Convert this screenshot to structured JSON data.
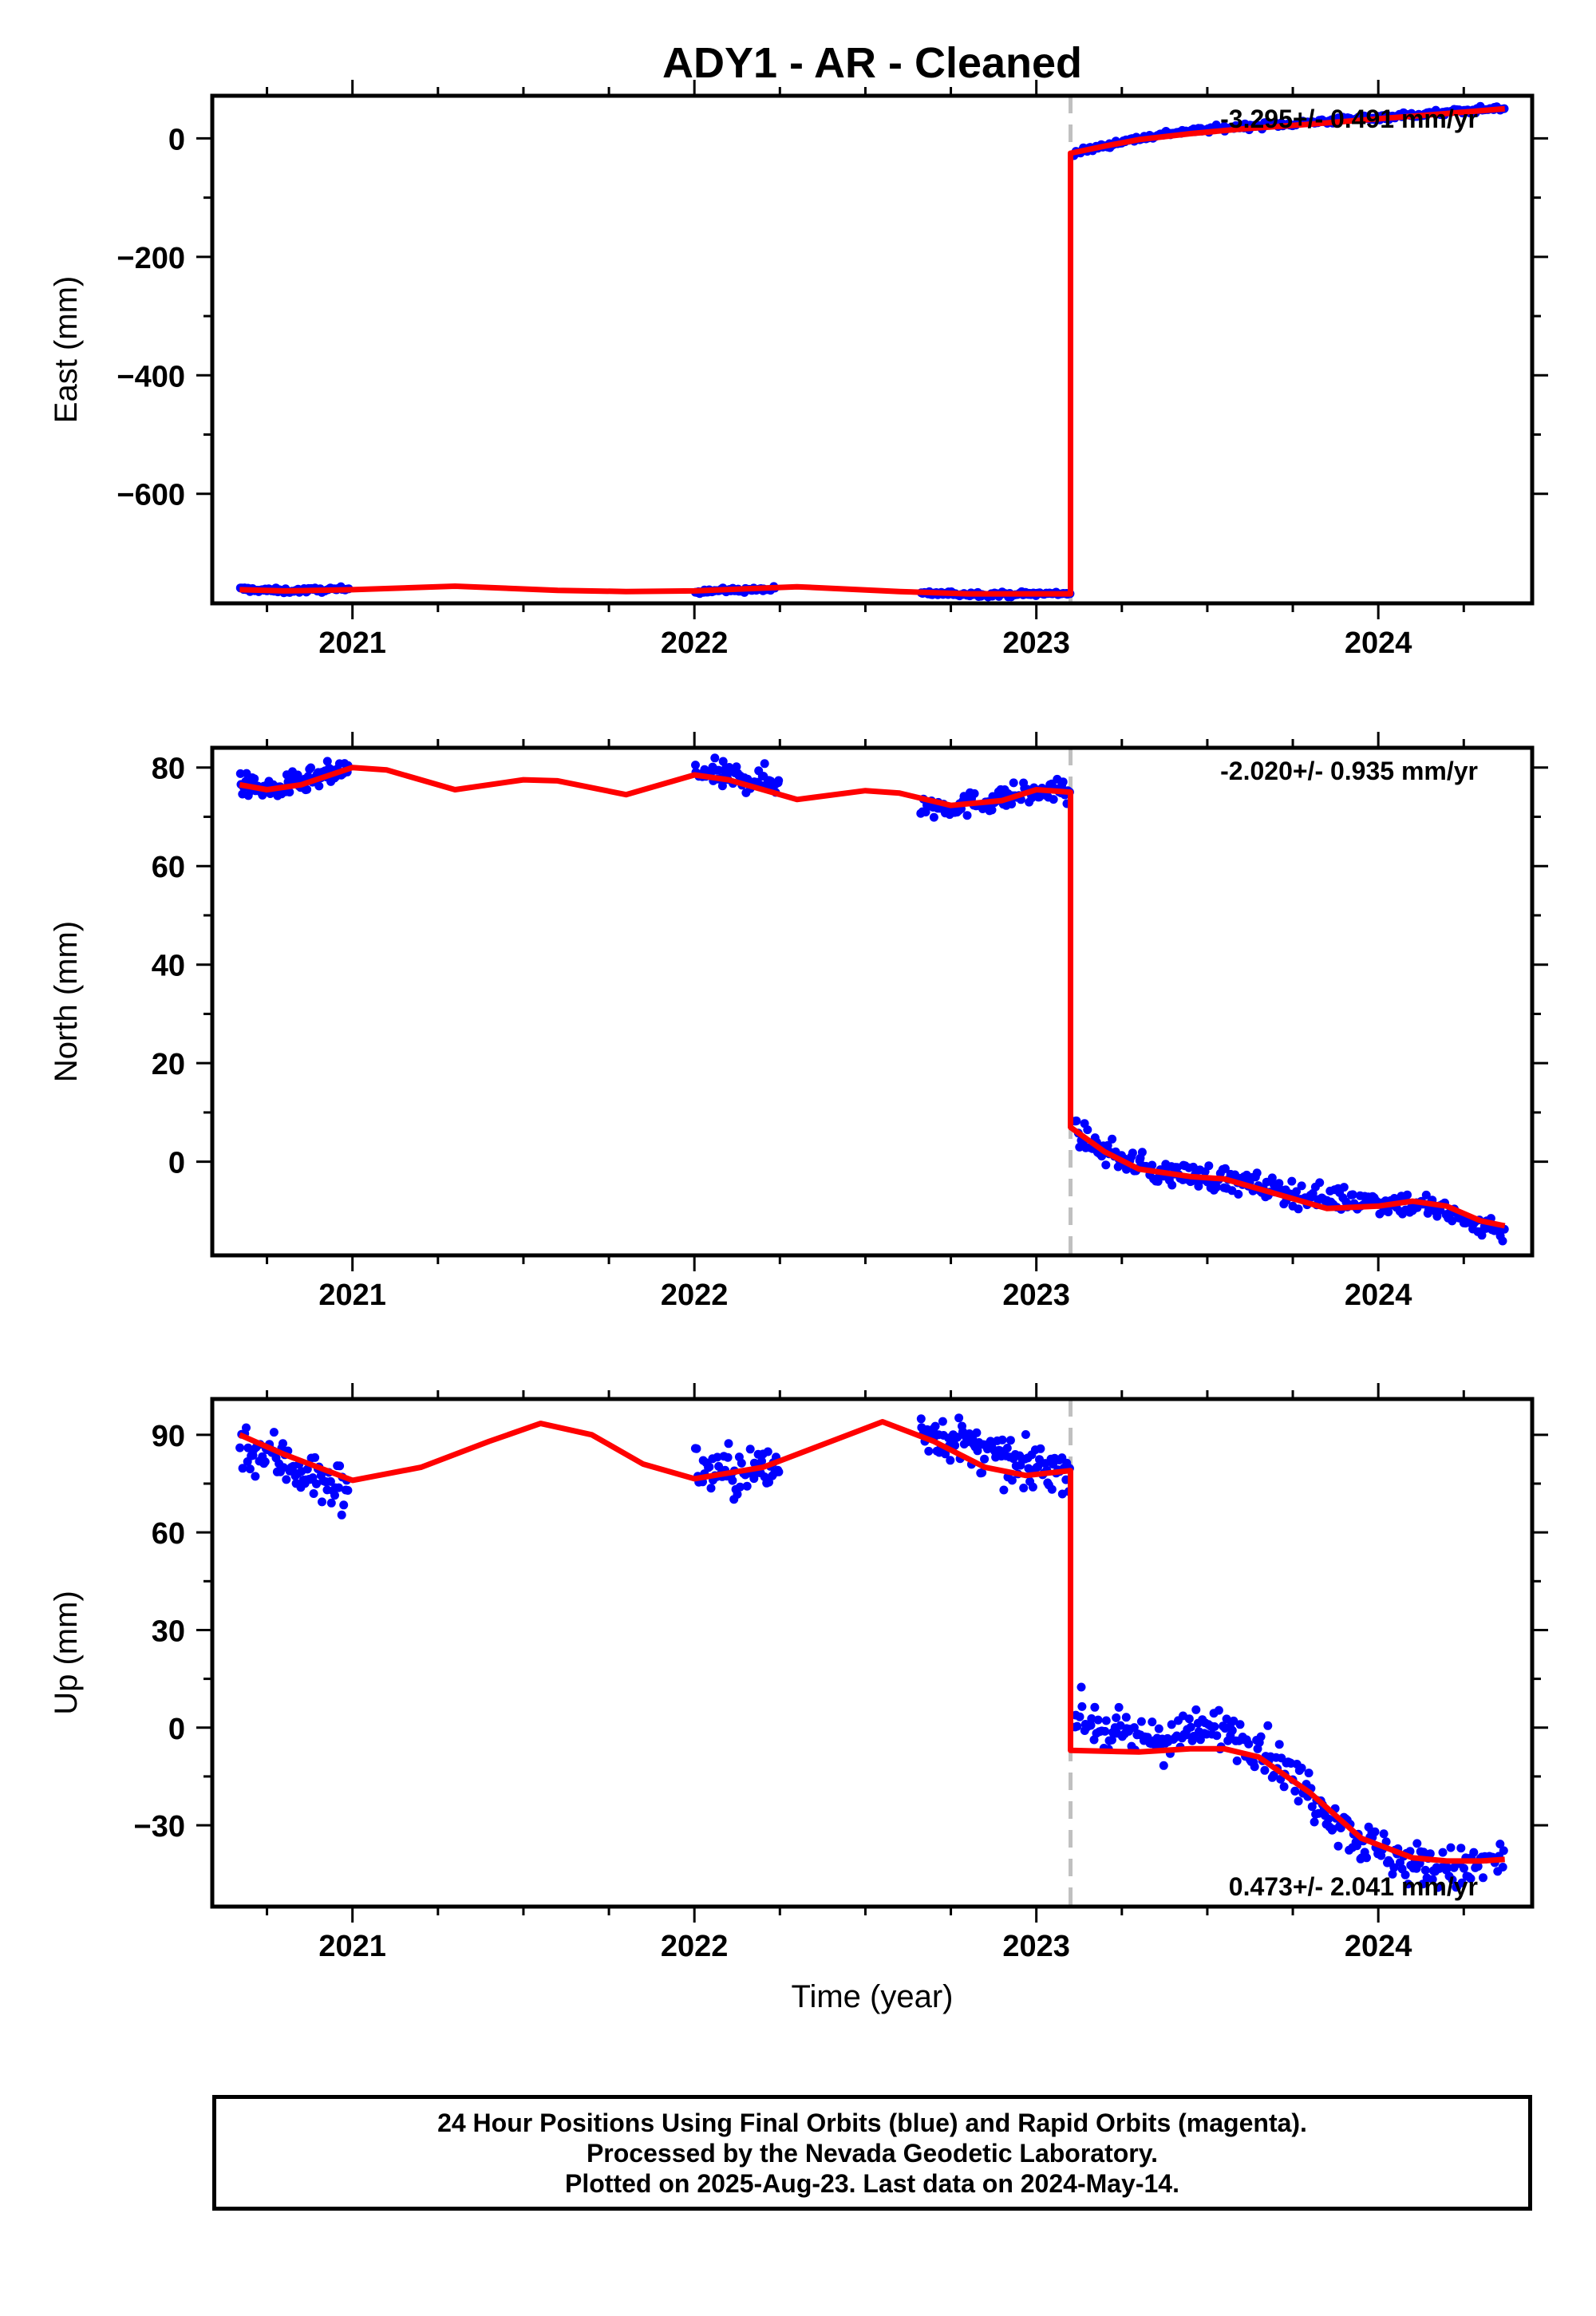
{
  "title": "ADY1  - AR - Cleaned",
  "colors": {
    "data_points": "#0000ff",
    "model_line": "#ff0000",
    "break_line": "#c0c0c0",
    "frame": "#000000"
  },
  "footer": {
    "lines": [
      "24 Hour Positions Using Final Orbits (blue) and Rapid Orbits (magenta).",
      "Processed by the Nevada Geodetic Laboratory.",
      "Plotted on 2025-Aug-23. Last data on 2024-May-14."
    ]
  },
  "chart_data": [
    {
      "type": "scatter",
      "component": "east",
      "ylabel": "East (mm)",
      "xlabel": "",
      "xlim": [
        2020.59,
        2024.45
      ],
      "ylim": [
        -785,
        72
      ],
      "xticks": [
        2021,
        2022,
        2023,
        2024
      ],
      "xtick_labels": [
        "2021",
        "2022",
        "2023",
        "2024"
      ],
      "yticks": [
        0,
        -200,
        -400,
        -600
      ],
      "ytick_labels": [
        "0",
        "−200",
        "−400",
        "−600"
      ],
      "rate_label": "-3.295+/- 0.491 mm/yr",
      "rate_position": "top-right",
      "break_epoch": 2023.1,
      "series": [
        {
          "role": "observations",
          "segments": [
            {
              "x_range": [
                2020.67,
                2020.99
              ],
              "anchors": [
                [
                  2020.67,
                  -761
                ],
                [
                  2020.8,
                  -764
                ],
                [
                  2020.99,
                  -761
                ]
              ],
              "noise": 2,
              "count": 70
            },
            {
              "x_range": [
                2022.0,
                2022.24
              ],
              "anchors": [
                [
                  2022.0,
                  -764
                ],
                [
                  2022.12,
                  -763
                ],
                [
                  2022.24,
                  -761
                ]
              ],
              "noise": 2,
              "count": 50
            },
            {
              "x_range": [
                2022.66,
                2023.1
              ],
              "anchors": [
                [
                  2022.66,
                  -768
                ],
                [
                  2022.9,
                  -770
                ],
                [
                  2023.1,
                  -768
                ]
              ],
              "noise": 2,
              "count": 90
            },
            {
              "x_range": [
                2023.11,
                2024.37
              ],
              "anchors": [
                [
                  2023.11,
                  -25
                ],
                [
                  2023.25,
                  -5
                ],
                [
                  2023.4,
                  10
                ],
                [
                  2023.6,
                  20
                ],
                [
                  2023.8,
                  27
                ],
                [
                  2024.0,
                  36
                ],
                [
                  2024.2,
                  44
                ],
                [
                  2024.37,
                  52
                ]
              ],
              "noise": 2.5,
              "count": 240
            }
          ]
        },
        {
          "role": "model",
          "points": [
            [
              2020.67,
              -762
            ],
            [
              2020.8,
              -764
            ],
            [
              2021.0,
              -762
            ],
            [
              2021.3,
              -756
            ],
            [
              2021.6,
              -763
            ],
            [
              2021.8,
              -765
            ],
            [
              2022.0,
              -764
            ],
            [
              2022.3,
              -757
            ],
            [
              2022.6,
              -765
            ],
            [
              2022.8,
              -769
            ],
            [
              2023.1,
              -769
            ],
            [
              2023.1,
              -25
            ],
            [
              2023.2,
              -13
            ],
            [
              2023.3,
              -2
            ],
            [
              2023.45,
              8
            ],
            [
              2023.6,
              16
            ],
            [
              2023.8,
              24
            ],
            [
              2024.0,
              33
            ],
            [
              2024.2,
              42
            ],
            [
              2024.37,
              50
            ]
          ]
        }
      ]
    },
    {
      "type": "scatter",
      "component": "north",
      "ylabel": "North (mm)",
      "xlabel": "",
      "xlim": [
        2020.59,
        2024.45
      ],
      "ylim": [
        -19,
        84
      ],
      "xticks": [
        2021,
        2022,
        2023,
        2024
      ],
      "xtick_labels": [
        "2021",
        "2022",
        "2023",
        "2024"
      ],
      "yticks": [
        80,
        60,
        40,
        20,
        0
      ],
      "ytick_labels": [
        "80",
        "60",
        "40",
        "20",
        "0"
      ],
      "rate_label": "-2.020+/- 0.935 mm/yr",
      "rate_position": "top-right",
      "break_epoch": 2023.1,
      "series": [
        {
          "role": "observations",
          "segments": [
            {
              "x_range": [
                2020.67,
                2020.99
              ],
              "anchors": [
                [
                  2020.67,
                  76.5
                ],
                [
                  2020.78,
                  75.5
                ],
                [
                  2020.88,
                  77.5
                ],
                [
                  2020.99,
                  79.5
                ]
              ],
              "noise": 1.2,
              "count": 80
            },
            {
              "x_range": [
                2022.0,
                2022.25
              ],
              "anchors": [
                [
                  2022.0,
                  79
                ],
                [
                  2022.12,
                  78
                ],
                [
                  2022.25,
                  77
                ]
              ],
              "noise": 1.4,
              "count": 60
            },
            {
              "x_range": [
                2022.66,
                2023.1
              ],
              "anchors": [
                [
                  2022.66,
                  72
                ],
                [
                  2022.8,
                  72.5
                ],
                [
                  2022.95,
                  74.5
                ],
                [
                  2023.1,
                  75.5
                ]
              ],
              "noise": 1.2,
              "count": 100
            },
            {
              "x_range": [
                2023.11,
                2024.37
              ],
              "anchors": [
                [
                  2023.11,
                  6
                ],
                [
                  2023.2,
                  2
                ],
                [
                  2023.35,
                  -2
                ],
                [
                  2023.5,
                  -3
                ],
                [
                  2023.65,
                  -5
                ],
                [
                  2023.8,
                  -7
                ],
                [
                  2024.0,
                  -8
                ],
                [
                  2024.15,
                  -9
                ],
                [
                  2024.25,
                  -12
                ],
                [
                  2024.37,
                  -14
                ]
              ],
              "noise": 1.3,
              "count": 260
            }
          ]
        },
        {
          "role": "model",
          "points": [
            [
              2020.67,
              76.5
            ],
            [
              2020.75,
              75.5
            ],
            [
              2020.85,
              76.5
            ],
            [
              2021.0,
              80
            ],
            [
              2021.1,
              79.5
            ],
            [
              2021.3,
              75.5
            ],
            [
              2021.5,
              77.5
            ],
            [
              2021.6,
              77.3
            ],
            [
              2021.8,
              74.5
            ],
            [
              2022.0,
              78.5
            ],
            [
              2022.1,
              77.5
            ],
            [
              2022.3,
              73.5
            ],
            [
              2022.5,
              75.3
            ],
            [
              2022.6,
              74.8
            ],
            [
              2022.75,
              72.3
            ],
            [
              2022.9,
              73.3
            ],
            [
              2023.0,
              75.5
            ],
            [
              2023.1,
              75
            ],
            [
              2023.1,
              7
            ],
            [
              2023.2,
              2
            ],
            [
              2023.3,
              -1.5
            ],
            [
              2023.45,
              -3
            ],
            [
              2023.55,
              -3.5
            ],
            [
              2023.7,
              -6.5
            ],
            [
              2023.85,
              -9.5
            ],
            [
              2024.0,
              -9
            ],
            [
              2024.1,
              -8
            ],
            [
              2024.2,
              -9
            ],
            [
              2024.3,
              -12
            ],
            [
              2024.37,
              -13
            ]
          ]
        }
      ]
    },
    {
      "type": "scatter",
      "component": "up",
      "ylabel": "Up (mm)",
      "xlabel": "Time (year)",
      "xlim": [
        2020.59,
        2024.45
      ],
      "ylim": [
        -55,
        101
      ],
      "xticks": [
        2021,
        2022,
        2023,
        2024
      ],
      "xtick_labels": [
        "2021",
        "2022",
        "2023",
        "2024"
      ],
      "yticks": [
        90,
        60,
        30,
        0,
        -30
      ],
      "ytick_labels": [
        "90",
        "60",
        "30",
        "0",
        "−30"
      ],
      "rate_label": "0.473+/- 2.041 mm/yr",
      "rate_position": "bottom-right",
      "break_epoch": 2023.1,
      "series": [
        {
          "role": "observations",
          "segments": [
            {
              "x_range": [
                2020.67,
                2020.99
              ],
              "anchors": [
                [
                  2020.67,
                  87
                ],
                [
                  2020.8,
                  82
                ],
                [
                  2020.92,
                  75
                ],
                [
                  2020.99,
                  73
                ]
              ],
              "noise": 4,
              "count": 80
            },
            {
              "x_range": [
                2022.0,
                2022.25
              ],
              "anchors": [
                [
                  2022.0,
                  80
                ],
                [
                  2022.12,
                  78
                ],
                [
                  2022.25,
                  80
                ]
              ],
              "noise": 4,
              "count": 60
            },
            {
              "x_range": [
                2022.66,
                2023.1
              ],
              "anchors": [
                [
                  2022.66,
                  92
                ],
                [
                  2022.8,
                  87
                ],
                [
                  2022.95,
                  80
                ],
                [
                  2023.1,
                  80
                ]
              ],
              "noise": 3.5,
              "count": 110
            },
            {
              "x_range": [
                2023.11,
                2024.37
              ],
              "anchors": [
                [
                  2023.11,
                  4
                ],
                [
                  2023.25,
                  -3
                ],
                [
                  2023.4,
                  -3
                ],
                [
                  2023.55,
                  0
                ],
                [
                  2023.65,
                  -5
                ],
                [
                  2023.75,
                  -15
                ],
                [
                  2023.85,
                  -25
                ],
                [
                  2023.95,
                  -35
                ],
                [
                  2024.1,
                  -42
                ],
                [
                  2024.25,
                  -44
                ],
                [
                  2024.37,
                  -40
                ]
              ],
              "noise": 3.5,
              "count": 270
            }
          ]
        },
        {
          "role": "model",
          "points": [
            [
              2020.67,
              90
            ],
            [
              2020.8,
              84
            ],
            [
              2021.0,
              76
            ],
            [
              2021.2,
              80
            ],
            [
              2021.4,
              88
            ],
            [
              2021.55,
              93.5
            ],
            [
              2021.7,
              90
            ],
            [
              2021.85,
              81
            ],
            [
              2022.0,
              76.5
            ],
            [
              2022.2,
              80
            ],
            [
              2022.4,
              88
            ],
            [
              2022.55,
              94
            ],
            [
              2022.7,
              88
            ],
            [
              2022.85,
              80
            ],
            [
              2022.97,
              77.5
            ],
            [
              2023.1,
              79
            ],
            [
              2023.1,
              -7
            ],
            [
              2023.3,
              -7.5
            ],
            [
              2023.45,
              -6.5
            ],
            [
              2023.55,
              -6.5
            ],
            [
              2023.65,
              -9
            ],
            [
              2023.8,
              -20
            ],
            [
              2023.95,
              -34
            ],
            [
              2024.1,
              -40
            ],
            [
              2024.2,
              -41
            ],
            [
              2024.3,
              -41
            ],
            [
              2024.37,
              -40.5
            ]
          ]
        }
      ]
    }
  ]
}
